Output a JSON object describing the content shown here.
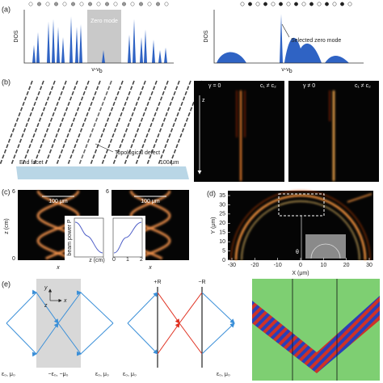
{
  "a": {
    "label": "(a)",
    "dos_left": "DOS",
    "dos_right": "DOS",
    "xlabel_left": {
      "main": "ν-ν",
      "sub": "b"
    },
    "xlabel_right": {
      "main": "ν-ν",
      "sub": "b"
    },
    "zero_mode": "Zero mode",
    "selected": "Selected zero mode"
  },
  "b": {
    "label": "(b)",
    "defect": "Topological defect",
    "facet": "End facet",
    "scale": "100 μm",
    "z": "z",
    "left_title": {
      "gamma": "γ = 0",
      "c": "c₁ ≠ c₂"
    },
    "right_title": {
      "gamma": "γ ≠ 0",
      "c": "c₁ ≠ c₂"
    }
  },
  "c": {
    "label": "(c)",
    "ylabel": "z (cm)",
    "scale_left": "100 μm",
    "scale_right": "100 μm",
    "top_left": "6",
    "bottom_left": "0",
    "top_right": "6",
    "bottom_right": "0",
    "x_left": "x",
    "x_right": "x",
    "inset": {
      "ylabel": "beam power P",
      "xticks": [
        "0",
        "1",
        "2"
      ],
      "xlabel": "z (cm)"
    }
  },
  "d": {
    "label": "(d)",
    "ylabel": "Y (μm)",
    "xlabel": "X (μm)",
    "theta": "θ",
    "yticks": [
      0,
      5,
      10,
      15,
      20,
      25,
      30,
      35
    ],
    "xticks": [
      -30,
      -20,
      -10,
      0,
      10,
      20,
      30
    ]
  },
  "e": {
    "label": "(e)",
    "axes": {
      "y": "y",
      "x": "x",
      "z": "z"
    },
    "left": {
      "media": [
        "ε₀, μ₀",
        "−ε₀, −μ₀",
        "ε₀, μ₀"
      ]
    },
    "middle": {
      "plus": "+R",
      "minus": "−R",
      "media": [
        "ε₀, μ₀",
        "ε₀, μ₀"
      ]
    }
  }
}
